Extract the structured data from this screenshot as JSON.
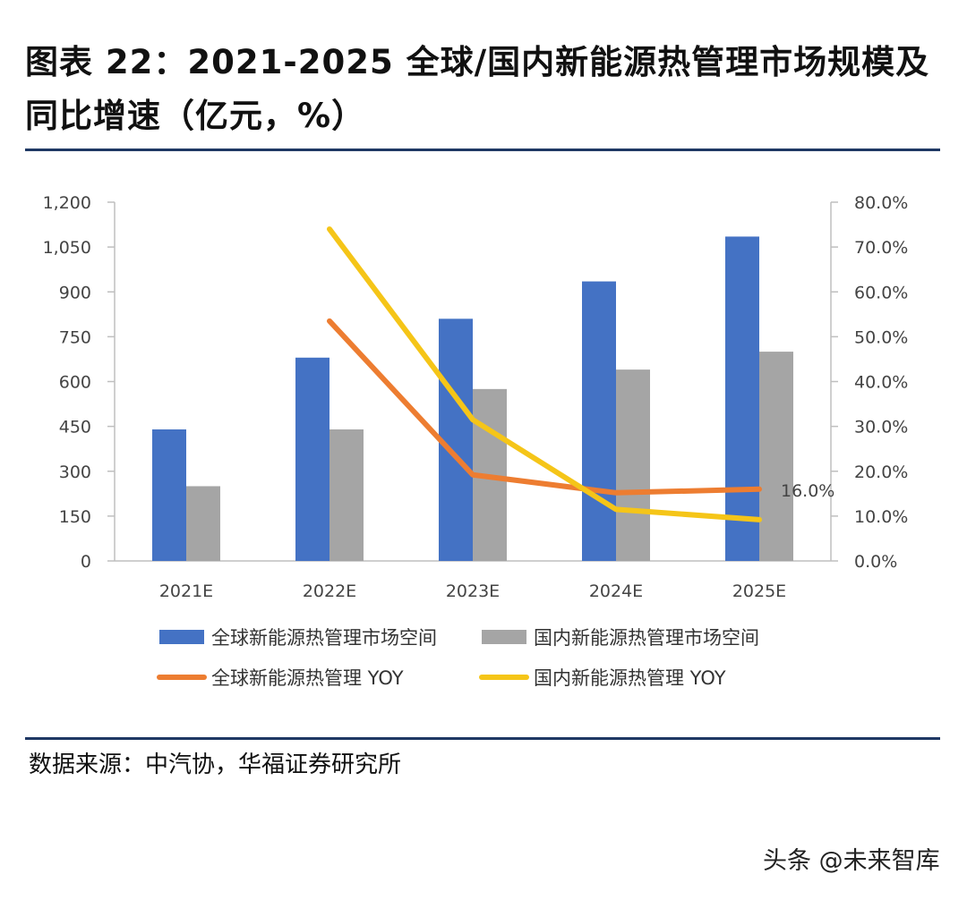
{
  "title": "图表 22：2021-2025 全球/国内新能源热管理市场规模及同比增速（亿元，%）",
  "source": "数据来源：中汽协，华福证券研究所",
  "watermark": "头条 @未来智库",
  "colors": {
    "global_bar": "#4472c4",
    "domestic_bar": "#a5a5a5",
    "global_yoy": "#ed7d31",
    "domestic_yoy": "#f5c518",
    "rule": "#1f3864"
  },
  "chart_data": {
    "type": "bar",
    "categories": [
      "2021E",
      "2022E",
      "2023E",
      "2024E",
      "2025E"
    ],
    "series": [
      {
        "name": "全球新能源热管理市场空间",
        "type": "bar",
        "axis": "left",
        "values": [
          440,
          680,
          810,
          935,
          1085
        ]
      },
      {
        "name": "国内新能源热管理市场空间",
        "type": "bar",
        "axis": "left",
        "values": [
          250,
          440,
          575,
          640,
          700
        ]
      },
      {
        "name": "全球新能源热管理 YOY",
        "type": "line",
        "axis": "right",
        "values": [
          null,
          53.5,
          19.2,
          15.2,
          16.0
        ]
      },
      {
        "name": "国内新能源热管理 YOY",
        "type": "line",
        "axis": "right",
        "values": [
          null,
          74.0,
          31.5,
          11.5,
          9.2
        ]
      }
    ],
    "y_left": {
      "min": 0,
      "max": 1200,
      "ticks": [
        "0",
        "150",
        "300",
        "450",
        "600",
        "750",
        "900",
        "1,050",
        "1,200"
      ]
    },
    "y_right": {
      "min": 0,
      "max": 80,
      "ticks": [
        "0.0%",
        "10.0%",
        "20.0%",
        "30.0%",
        "40.0%",
        "50.0%",
        "60.0%",
        "70.0%",
        "80.0%"
      ]
    },
    "annotations": [
      {
        "series": "全球新能源热管理 YOY",
        "category": "2025E",
        "text": "16.0%"
      }
    ],
    "legend_position": "bottom"
  }
}
